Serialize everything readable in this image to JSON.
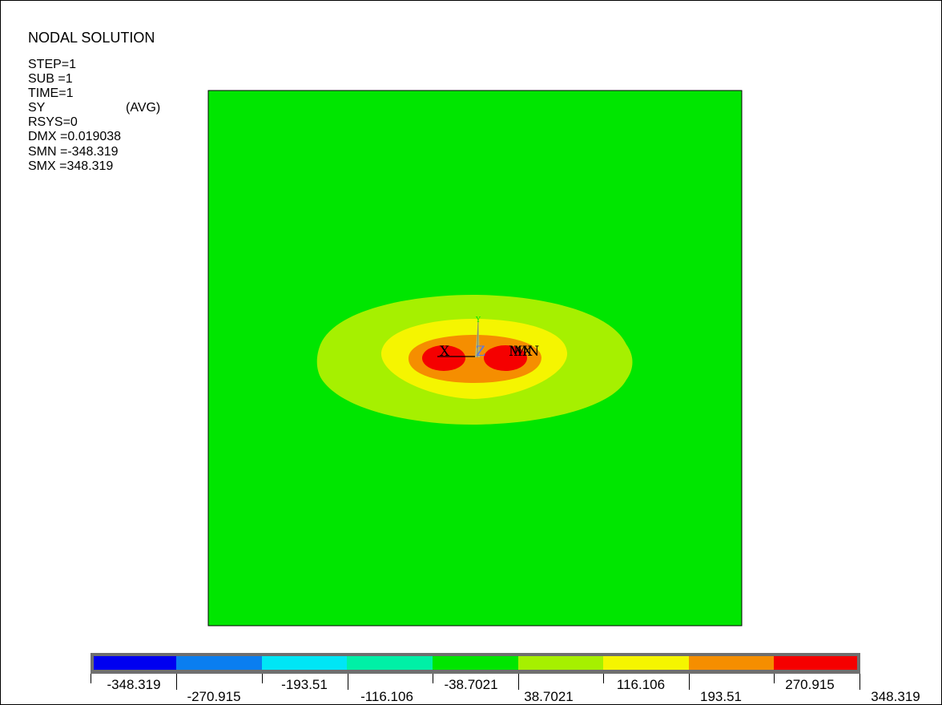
{
  "header": {
    "title": "NODAL SOLUTION",
    "lines": [
      {
        "key": "STEP=1",
        "qual": ""
      },
      {
        "key": "SUB =1",
        "qual": ""
      },
      {
        "key": "TIME=1",
        "qual": ""
      },
      {
        "key": "SY",
        "qual": "(AVG)"
      },
      {
        "key": "RSYS=0",
        "qual": ""
      },
      {
        "key": "DMX =0.019038",
        "qual": ""
      },
      {
        "key": "SMN =-348.319",
        "qual": ""
      },
      {
        "key": "SMX =348.319",
        "qual": ""
      }
    ]
  },
  "plot": {
    "background_color": "#00e600",
    "triad": {
      "x_label": "X",
      "z_label": "Z",
      "y_label": "Y"
    },
    "extreme_labels": {
      "max": "MX",
      "min": "MN"
    }
  },
  "legend": {
    "colors": [
      "#0000f0",
      "#0a7ef0",
      "#00e6f5",
      "#00f0a6",
      "#00e600",
      "#a6f000",
      "#f5f500",
      "#f58e00",
      "#f50000"
    ],
    "labels": [
      "-348.319",
      "-270.915",
      "-193.51",
      "-116.106",
      "-38.7021",
      "38.7021",
      "116.106",
      "193.51",
      "270.915",
      "348.319"
    ]
  }
}
